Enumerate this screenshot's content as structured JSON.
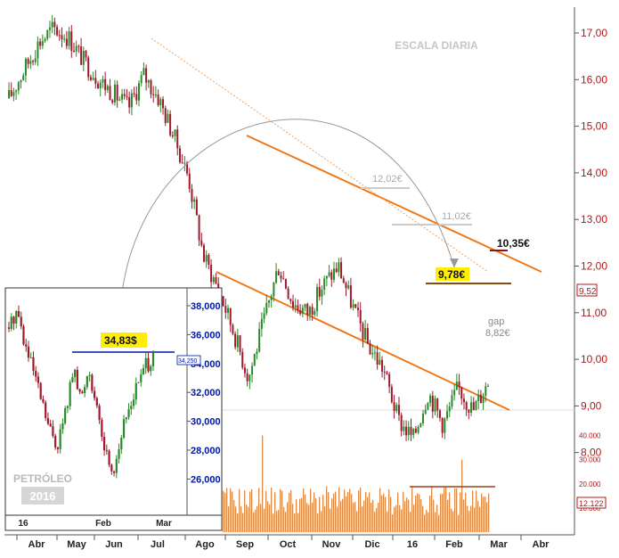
{
  "chart_data": [
    {
      "type": "candlestick",
      "title": "ESCALA DIARIA",
      "x_month_labels": [
        "Abr",
        "May",
        "Jun",
        "Jul",
        "Ago",
        "Sep",
        "Oct",
        "Nov",
        "Dic",
        "16",
        "Feb",
        "Mar",
        "Abr"
      ],
      "y_tick_labels": [
        "17,00",
        "16,00",
        "15,00",
        "14,00",
        "13,00",
        "12,00",
        "11,00",
        "10,00",
        "9,00",
        "8,00"
      ],
      "ylim": [
        7.6,
        17.3
      ],
      "last_price_label": "9,52",
      "close_series": [
        {
          "x": "Abr",
          "y": 15.6
        },
        {
          "x": "Abr",
          "y": 16.2
        },
        {
          "x": "May",
          "y": 16.8
        },
        {
          "x": "May",
          "y": 17.1
        },
        {
          "x": "May",
          "y": 16.9
        },
        {
          "x": "Jun",
          "y": 16.4
        },
        {
          "x": "Jun",
          "y": 16.0
        },
        {
          "x": "Jun",
          "y": 15.7
        },
        {
          "x": "Jul",
          "y": 15.4
        },
        {
          "x": "Jul",
          "y": 16.1
        },
        {
          "x": "Jul",
          "y": 15.6
        },
        {
          "x": "Ago",
          "y": 14.8
        },
        {
          "x": "Ago",
          "y": 13.9
        },
        {
          "x": "Ago",
          "y": 12.2
        },
        {
          "x": "Sep",
          "y": 11.5
        },
        {
          "x": "Sep",
          "y": 10.6
        },
        {
          "x": "Sep",
          "y": 9.6
        },
        {
          "x": "Oct",
          "y": 10.8
        },
        {
          "x": "Oct",
          "y": 12.0
        },
        {
          "x": "Oct",
          "y": 11.2
        },
        {
          "x": "Nov",
          "y": 11.0
        },
        {
          "x": "Nov",
          "y": 11.6
        },
        {
          "x": "Nov",
          "y": 12.0
        },
        {
          "x": "Dic",
          "y": 11.1
        },
        {
          "x": "Dic",
          "y": 10.3
        },
        {
          "x": "Dic",
          "y": 9.8
        },
        {
          "x": "16",
          "y": 8.7
        },
        {
          "x": "16",
          "y": 8.3
        },
        {
          "x": "16",
          "y": 9.3
        },
        {
          "x": "Feb",
          "y": 8.6
        },
        {
          "x": "Feb",
          "y": 9.4
        },
        {
          "x": "Feb",
          "y": 8.9
        },
        {
          "x": "Mar",
          "y": 9.52
        }
      ],
      "volume": {
        "tick_labels": [
          "40.000",
          "30.000",
          "20.000",
          "10.000"
        ],
        "ylim": [
          0,
          45000
        ],
        "last_label": "12.122"
      },
      "annotations": [
        {
          "text": "12,02€",
          "value": 12.02
        },
        {
          "text": "11,02€",
          "value": 11.02
        },
        {
          "text": "10,35€",
          "value": 10.35
        },
        {
          "text": "9,78€",
          "value": 9.78
        },
        {
          "text": "gap",
          "value": 8.82
        },
        {
          "text": "8,82€",
          "value": 8.82
        }
      ]
    },
    {
      "type": "candlestick",
      "title": "PETRÓLEO",
      "subtitle": "2016",
      "x_month_labels": [
        "16",
        "Feb",
        "Mar"
      ],
      "y_tick_labels": [
        "38,000",
        "36,000",
        "34,000",
        "32,000",
        "30,000",
        "28,000",
        "26,000"
      ],
      "ylim": [
        25,
        39
      ],
      "last_price_label": "34,250",
      "resistance_label": "34,83$",
      "resistance_value": 34.83,
      "close_series": [
        {
          "x": "16",
          "y": 36.5
        },
        {
          "x": "16",
          "y": 37.8
        },
        {
          "x": "16",
          "y": 35.2
        },
        {
          "x": "16",
          "y": 33.5
        },
        {
          "x": "16",
          "y": 31.5
        },
        {
          "x": "16",
          "y": 29.5
        },
        {
          "x": "16",
          "y": 28.3
        },
        {
          "x": "16",
          "y": 30.5
        },
        {
          "x": "Feb",
          "y": 33.5
        },
        {
          "x": "Feb",
          "y": 31.5
        },
        {
          "x": "Feb",
          "y": 33.8
        },
        {
          "x": "Feb",
          "y": 30.5
        },
        {
          "x": "Feb",
          "y": 28.0
        },
        {
          "x": "Feb",
          "y": 26.5
        },
        {
          "x": "Feb",
          "y": 29.0
        },
        {
          "x": "Feb",
          "y": 31.0
        },
        {
          "x": "Mar",
          "y": 32.5
        },
        {
          "x": "Mar",
          "y": 33.8
        },
        {
          "x": "Mar",
          "y": 34.25
        }
      ]
    }
  ],
  "colors": {
    "up": "#2a8a2a",
    "down": "#a0182a",
    "channel": "#f07818",
    "axis_text": "#b01818",
    "resistance": "#0018a0",
    "highlight": "#ffee00",
    "volume": "#e08a4a"
  }
}
